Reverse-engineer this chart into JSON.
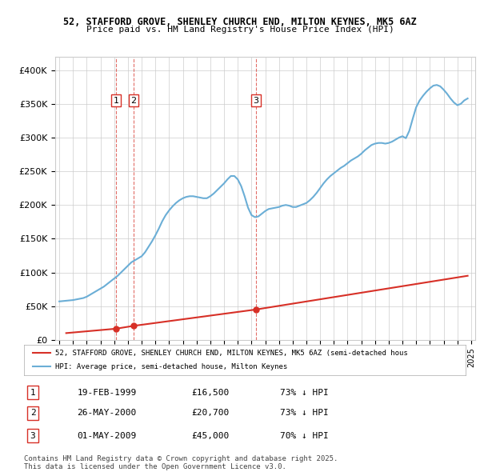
{
  "title1": "52, STAFFORD GROVE, SHENLEY CHURCH END, MILTON KEYNES, MK5 6AZ",
  "title2": "Price paid vs. HM Land Registry's House Price Index (HPI)",
  "ylim": [
    0,
    420000
  ],
  "yticks": [
    0,
    50000,
    100000,
    150000,
    200000,
    250000,
    300000,
    350000,
    400000
  ],
  "ytick_labels": [
    "£0",
    "£50K",
    "£100K",
    "£150K",
    "£200K",
    "£250K",
    "£300K",
    "£350K",
    "£400K"
  ],
  "transactions": [
    {
      "num": 1,
      "date_str": "19-FEB-1999",
      "year": 1999.12,
      "price": 16500,
      "pct": "73% ↓ HPI"
    },
    {
      "num": 2,
      "date_str": "26-MAY-2000",
      "year": 2000.4,
      "price": 20700,
      "pct": "73% ↓ HPI"
    },
    {
      "num": 3,
      "date_str": "01-MAY-2009",
      "year": 2009.33,
      "price": 45000,
      "pct": "70% ↓ HPI"
    }
  ],
  "hpi_color": "#6baed6",
  "price_color": "#d73027",
  "vline_color": "#d73027",
  "background_color": "#ffffff",
  "grid_color": "#cccccc",
  "legend_line1": "52, STAFFORD GROVE, SHENLEY CHURCH END, MILTON KEYNES, MK5 6AZ (semi-detached hous",
  "legend_line2": "HPI: Average price, semi-detached house, Milton Keynes",
  "footnote1": "Contains HM Land Registry data © Crown copyright and database right 2025.",
  "footnote2": "This data is licensed under the Open Government Licence v3.0.",
  "hpi_data_x": [
    1995.0,
    1995.25,
    1995.5,
    1995.75,
    1996.0,
    1996.25,
    1996.5,
    1996.75,
    1997.0,
    1997.25,
    1997.5,
    1997.75,
    1998.0,
    1998.25,
    1998.5,
    1998.75,
    1999.0,
    1999.25,
    1999.5,
    1999.75,
    2000.0,
    2000.25,
    2000.5,
    2000.75,
    2001.0,
    2001.25,
    2001.5,
    2001.75,
    2002.0,
    2002.25,
    2002.5,
    2002.75,
    2003.0,
    2003.25,
    2003.5,
    2003.75,
    2004.0,
    2004.25,
    2004.5,
    2004.75,
    2005.0,
    2005.25,
    2005.5,
    2005.75,
    2006.0,
    2006.25,
    2006.5,
    2006.75,
    2007.0,
    2007.25,
    2007.5,
    2007.75,
    2008.0,
    2008.25,
    2008.5,
    2008.75,
    2009.0,
    2009.25,
    2009.5,
    2009.75,
    2010.0,
    2010.25,
    2010.5,
    2010.75,
    2011.0,
    2011.25,
    2011.5,
    2011.75,
    2012.0,
    2012.25,
    2012.5,
    2012.75,
    2013.0,
    2013.25,
    2013.5,
    2013.75,
    2014.0,
    2014.25,
    2014.5,
    2014.75,
    2015.0,
    2015.25,
    2015.5,
    2015.75,
    2016.0,
    2016.25,
    2016.5,
    2016.75,
    2017.0,
    2017.25,
    2017.5,
    2017.75,
    2018.0,
    2018.25,
    2018.5,
    2018.75,
    2019.0,
    2019.25,
    2019.5,
    2019.75,
    2020.0,
    2020.25,
    2020.5,
    2020.75,
    2021.0,
    2021.25,
    2021.5,
    2021.75,
    2022.0,
    2022.25,
    2022.5,
    2022.75,
    2023.0,
    2023.25,
    2023.5,
    2023.75,
    2024.0,
    2024.25,
    2024.5,
    2024.75
  ],
  "hpi_data_y": [
    57000,
    57500,
    58000,
    58500,
    59000,
    60000,
    61000,
    62000,
    64000,
    67000,
    70000,
    73000,
    76000,
    79000,
    83000,
    87000,
    91000,
    95000,
    100000,
    105000,
    110000,
    115000,
    118000,
    121000,
    124000,
    130000,
    138000,
    146000,
    155000,
    165000,
    176000,
    185000,
    192000,
    198000,
    203000,
    207000,
    210000,
    212000,
    213000,
    213000,
    212000,
    211000,
    210000,
    210000,
    213000,
    217000,
    222000,
    227000,
    232000,
    238000,
    243000,
    243000,
    238000,
    228000,
    213000,
    196000,
    185000,
    182000,
    183000,
    187000,
    191000,
    194000,
    195000,
    196000,
    197000,
    199000,
    200000,
    199000,
    197000,
    197000,
    199000,
    201000,
    203000,
    207000,
    212000,
    218000,
    225000,
    232000,
    238000,
    243000,
    247000,
    251000,
    255000,
    258000,
    262000,
    266000,
    269000,
    272000,
    276000,
    281000,
    285000,
    289000,
    291000,
    292000,
    292000,
    291000,
    292000,
    294000,
    297000,
    300000,
    302000,
    299000,
    310000,
    328000,
    345000,
    355000,
    362000,
    368000,
    373000,
    377000,
    378000,
    376000,
    371000,
    365000,
    358000,
    352000,
    348000,
    350000,
    355000,
    358000
  ],
  "price_data_x": [
    1995.5,
    1999.12,
    2000.4,
    2009.33,
    2024.75
  ],
  "price_data_y": [
    10000,
    16500,
    20700,
    45000,
    95000
  ]
}
